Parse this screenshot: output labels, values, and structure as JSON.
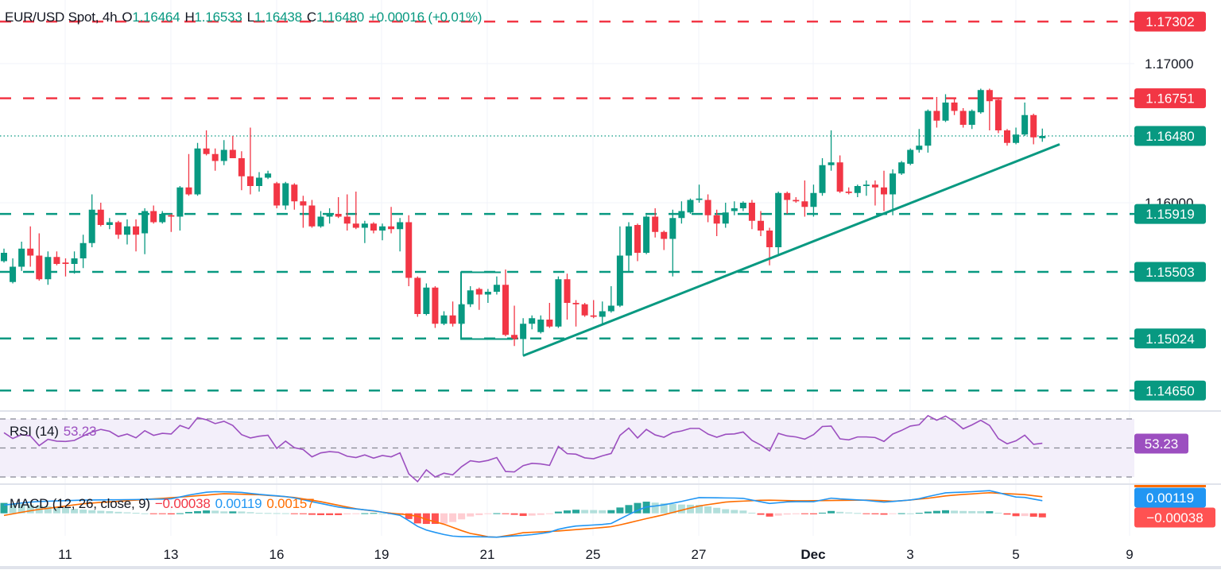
{
  "header": {
    "symbol": "EUR/USD Spot, 4h",
    "o_label": "O",
    "o_value": "1.16464",
    "h_label": "H",
    "h_value": "1.16533",
    "l_label": "L",
    "l_value": "1.16438",
    "c_label": "C",
    "c_value": "1.16480",
    "change": "+0.00016 (+0.01%)"
  },
  "rsi_legend": {
    "label": "RSI (14)",
    "value": "53.23"
  },
  "macd_legend": {
    "label": "MACD (12, 26, close, 9)",
    "hist": "−0.00038",
    "macd": "0.00119",
    "signal": "0.00157"
  },
  "colors": {
    "up": "#089981",
    "down": "#f23645",
    "resistance": "#f23645",
    "support": "#089981",
    "trendline": "#089981",
    "rsi": "#9c4fc0",
    "rsi_band": "#f3effa",
    "macd": "#2196f3",
    "signal": "#ff6d00",
    "hist_up_strong": "#26a69a",
    "hist_up_weak": "#b2dfdb",
    "hist_down_strong": "#ff5252",
    "hist_down_weak": "#ffcdd2"
  },
  "chart_data": {
    "type": "candlestick",
    "timeframe": "4h",
    "x_tick_labels": [
      "11",
      "13",
      "16",
      "19",
      "21",
      "25",
      "27",
      "Dec",
      "3",
      "5",
      "9"
    ],
    "y_tick_labels": [
      "1.17000",
      "1.16000"
    ],
    "y_ticks": [
      1.17,
      1.16
    ],
    "ylim": [
      1.1445,
      1.1745
    ],
    "grid": true,
    "last_price": {
      "value": 1.1648,
      "label": "1.16480"
    },
    "levels": [
      {
        "type": "resistance",
        "value": 1.17302,
        "label": "1.17302"
      },
      {
        "type": "resistance",
        "value": 1.16751,
        "label": "1.16751"
      },
      {
        "type": "support",
        "value": 1.15919,
        "label": "1.15919"
      },
      {
        "type": "support",
        "value": 1.15503,
        "label": "1.15503"
      },
      {
        "type": "support",
        "value": 1.15024,
        "label": "1.15024"
      },
      {
        "type": "support",
        "value": 1.1465,
        "label": "1.14650"
      }
    ],
    "trendline": {
      "start_price": 1.149,
      "end_price": 1.1642
    },
    "range_box": {
      "top": 1.155,
      "bottom": 1.1502
    },
    "ohlc": [
      [
        1.1558,
        1.1567,
        1.1557,
        1.1564
      ],
      [
        1.1543,
        1.156,
        1.1542,
        1.1554
      ],
      [
        1.1554,
        1.1572,
        1.1551,
        1.1567
      ],
      [
        1.1567,
        1.1583,
        1.1554,
        1.1562
      ],
      [
        1.1562,
        1.1578,
        1.1544,
        1.1545
      ],
      [
        1.1545,
        1.1565,
        1.1541,
        1.1561
      ],
      [
        1.1561,
        1.1565,
        1.1555,
        1.1556
      ],
      [
        1.1557,
        1.156,
        1.1547,
        1.1556
      ],
      [
        1.1556,
        1.1565,
        1.1549,
        1.156
      ],
      [
        1.156,
        1.1577,
        1.1553,
        1.1571
      ],
      [
        1.1571,
        1.1606,
        1.1568,
        1.1595
      ],
      [
        1.1595,
        1.16,
        1.1583,
        1.1584
      ],
      [
        1.1584,
        1.1589,
        1.1581,
        1.1586
      ],
      [
        1.1586,
        1.1587,
        1.1574,
        1.1577
      ],
      [
        1.1577,
        1.1588,
        1.157,
        1.1583
      ],
      [
        1.1583,
        1.1588,
        1.1565,
        1.1577
      ],
      [
        1.1578,
        1.1596,
        1.1563,
        1.1594
      ],
      [
        1.1594,
        1.1598,
        1.1585,
        1.1586
      ],
      [
        1.1586,
        1.1594,
        1.1585,
        1.1592
      ],
      [
        1.1591,
        1.1592,
        1.1579,
        1.159
      ],
      [
        1.159,
        1.1612,
        1.158,
        1.1611
      ],
      [
        1.1611,
        1.1635,
        1.1605,
        1.1606
      ],
      [
        1.1606,
        1.1643,
        1.1605,
        1.1639
      ],
      [
        1.1639,
        1.1652,
        1.1634,
        1.1635
      ],
      [
        1.1635,
        1.1639,
        1.1623,
        1.163
      ],
      [
        1.163,
        1.1645,
        1.1627,
        1.1638
      ],
      [
        1.1638,
        1.1648,
        1.1632,
        1.1632
      ],
      [
        1.1632,
        1.1637,
        1.1609,
        1.1619
      ],
      [
        1.1619,
        1.1654,
        1.1606,
        1.1612
      ],
      [
        1.1612,
        1.1622,
        1.1608,
        1.1618
      ],
      [
        1.1618,
        1.1623,
        1.1617,
        1.1621
      ],
      [
        1.1614,
        1.1615,
        1.1596,
        1.1598
      ],
      [
        1.1598,
        1.1615,
        1.1595,
        1.1614
      ],
      [
        1.1613,
        1.1614,
        1.1595,
        1.1601
      ],
      [
        1.1601,
        1.1605,
        1.1582,
        1.1598
      ],
      [
        1.1598,
        1.1602,
        1.1582,
        1.1583
      ],
      [
        1.1583,
        1.1594,
        1.1582,
        1.159
      ],
      [
        1.159,
        1.1596,
        1.1585,
        1.1592
      ],
      [
        1.1592,
        1.1604,
        1.1589,
        1.159
      ],
      [
        1.159,
        1.1606,
        1.158,
        1.1585
      ],
      [
        1.1585,
        1.1608,
        1.1581,
        1.1582
      ],
      [
        1.1582,
        1.1587,
        1.1571,
        1.1585
      ],
      [
        1.1585,
        1.1586,
        1.1578,
        1.158
      ],
      [
        1.158,
        1.1585,
        1.1573,
        1.1583
      ],
      [
        1.1583,
        1.1597,
        1.1578,
        1.1581
      ],
      [
        1.1581,
        1.1589,
        1.1565,
        1.1586
      ],
      [
        1.1586,
        1.1591,
        1.154,
        1.1546
      ],
      [
        1.1546,
        1.1547,
        1.1518,
        1.152
      ],
      [
        1.152,
        1.1542,
        1.1519,
        1.1539
      ],
      [
        1.1539,
        1.154,
        1.151,
        1.1513
      ],
      [
        1.1513,
        1.1522,
        1.1512,
        1.1519
      ],
      [
        1.1519,
        1.1529,
        1.1511,
        1.1513
      ],
      [
        1.1513,
        1.1528,
        1.1512,
        1.1527
      ],
      [
        1.1527,
        1.154,
        1.1525,
        1.1537
      ],
      [
        1.1538,
        1.1539,
        1.1523,
        1.1534
      ],
      [
        1.1534,
        1.1538,
        1.1528,
        1.1536
      ],
      [
        1.1536,
        1.1547,
        1.1534,
        1.1541
      ],
      [
        1.1541,
        1.1552,
        1.1504,
        1.1505
      ],
      [
        1.1505,
        1.1526,
        1.1497,
        1.1502
      ],
      [
        1.1502,
        1.1517,
        1.149,
        1.1513
      ],
      [
        1.1513,
        1.1519,
        1.1509,
        1.1517
      ],
      [
        1.1507,
        1.1519,
        1.1506,
        1.1516
      ],
      [
        1.1516,
        1.1528,
        1.151,
        1.1511
      ],
      [
        1.1511,
        1.1547,
        1.151,
        1.1545
      ],
      [
        1.1545,
        1.1549,
        1.1516,
        1.1528
      ],
      [
        1.1528,
        1.153,
        1.1511,
        1.1527
      ],
      [
        1.1527,
        1.1528,
        1.1518,
        1.1519
      ],
      [
        1.1519,
        1.153,
        1.1517,
        1.1518
      ],
      [
        1.1518,
        1.1529,
        1.1513,
        1.1522
      ],
      [
        1.1522,
        1.154,
        1.1521,
        1.1526
      ],
      [
        1.1526,
        1.1583,
        1.1525,
        1.1562
      ],
      [
        1.1562,
        1.1586,
        1.155,
        1.1583
      ],
      [
        1.1584,
        1.1585,
        1.1558,
        1.1564
      ],
      [
        1.1564,
        1.1591,
        1.1563,
        1.159
      ],
      [
        1.159,
        1.1596,
        1.1575,
        1.1579
      ],
      [
        1.1579,
        1.158,
        1.1566,
        1.1574
      ],
      [
        1.1574,
        1.1595,
        1.1547,
        1.1589
      ],
      [
        1.1589,
        1.1601,
        1.1585,
        1.1594
      ],
      [
        1.1593,
        1.1603,
        1.1592,
        1.1602
      ],
      [
        1.1602,
        1.1613,
        1.16,
        1.1603
      ],
      [
        1.1602,
        1.1606,
        1.1586,
        1.1591
      ],
      [
        1.1591,
        1.1595,
        1.1576,
        1.1585
      ],
      [
        1.1585,
        1.16,
        1.1582,
        1.1593
      ],
      [
        1.1594,
        1.1601,
        1.1591,
        1.1596
      ],
      [
        1.1596,
        1.1601,
        1.1594,
        1.16
      ],
      [
        1.16,
        1.1602,
        1.1581,
        1.1587
      ],
      [
        1.1587,
        1.1594,
        1.1576,
        1.158
      ],
      [
        1.158,
        1.1582,
        1.1555,
        1.1568
      ],
      [
        1.1568,
        1.1608,
        1.1563,
        1.1607
      ],
      [
        1.1607,
        1.1608,
        1.1592,
        1.1602
      ],
      [
        1.1602,
        1.1604,
        1.16,
        1.1601
      ],
      [
        1.1601,
        1.1616,
        1.159,
        1.1597
      ],
      [
        1.1597,
        1.1613,
        1.159,
        1.1607
      ],
      [
        1.1607,
        1.1632,
        1.1605,
        1.1627
      ],
      [
        1.1627,
        1.1652,
        1.1623,
        1.1629
      ],
      [
        1.1629,
        1.1634,
        1.1607,
        1.1608
      ],
      [
        1.1608,
        1.1611,
        1.1606,
        1.1607
      ],
      [
        1.1607,
        1.1613,
        1.1604,
        1.1612
      ],
      [
        1.1612,
        1.1616,
        1.1605,
        1.1613
      ],
      [
        1.1613,
        1.1616,
        1.1598,
        1.1611
      ],
      [
        1.1611,
        1.1623,
        1.1594,
        1.1606
      ],
      [
        1.1606,
        1.1624,
        1.1591,
        1.1621
      ],
      [
        1.1621,
        1.163,
        1.162,
        1.1629
      ],
      [
        1.1628,
        1.1639,
        1.1627,
        1.1638
      ],
      [
        1.1638,
        1.1653,
        1.1636,
        1.1641
      ],
      [
        1.1641,
        1.1667,
        1.1636,
        1.1666
      ],
      [
        1.1666,
        1.1676,
        1.1654,
        1.1659
      ],
      [
        1.1659,
        1.1678,
        1.1658,
        1.1672
      ],
      [
        1.1672,
        1.1675,
        1.1663,
        1.1666
      ],
      [
        1.1666,
        1.1668,
        1.1654,
        1.1656
      ],
      [
        1.1656,
        1.1667,
        1.1653,
        1.1666
      ],
      [
        1.1665,
        1.1682,
        1.1664,
        1.1681
      ],
      [
        1.1681,
        1.1682,
        1.1652,
        1.1673
      ],
      [
        1.1674,
        1.1675,
        1.165,
        1.1652
      ],
      [
        1.1652,
        1.1653,
        1.1641,
        1.1643
      ],
      [
        1.1643,
        1.1654,
        1.1642,
        1.1649
      ],
      [
        1.1649,
        1.1672,
        1.1648,
        1.1663
      ],
      [
        1.1663,
        1.1664,
        1.1642,
        1.1647
      ],
      [
        1.16464,
        1.16533,
        1.16438,
        1.1648
      ]
    ],
    "rsi": {
      "period": 14,
      "levels": [
        70,
        50,
        30
      ],
      "last_label": "53.23",
      "values": [
        60.5,
        56.5,
        59.2,
        58.3,
        51.6,
        56.0,
        54.7,
        54.5,
        55.2,
        58.3,
        61.0,
        62.8,
        61.5,
        57.9,
        59.6,
        57.0,
        61.9,
        58.7,
        60.1,
        59.6,
        65.5,
        63.3,
        70.9,
        69.5,
        66.8,
        68.4,
        65.5,
        59.2,
        56.9,
        58.1,
        58.8,
        49.7,
        54.7,
        50.2,
        48.9,
        43.9,
        46.6,
        47.5,
        47.0,
        44.3,
        43.4,
        45.2,
        43.0,
        44.8,
        43.9,
        46.6,
        32.2,
        26.8,
        34.9,
        30.0,
        32.6,
        31.5,
        37.1,
        41.2,
        40.3,
        41.4,
        43.4,
        33.8,
        33.5,
        37.8,
        39.4,
        39.0,
        38.0,
        51.1,
        46.1,
        45.7,
        43.2,
        42.6,
        44.6,
        46.2,
        58.7,
        63.7,
        56.9,
        62.8,
        59.0,
        57.4,
        60.6,
        61.7,
        63.5,
        63.5,
        59.6,
        57.4,
        59.4,
        59.7,
        61.0,
        55.2,
        52.0,
        48.0,
        60.1,
        58.3,
        57.6,
        56.1,
        59.2,
        64.8,
        65.1,
        56.3,
        55.6,
        57.6,
        57.6,
        57.2,
        54.5,
        59.6,
        62.1,
        65.1,
        66.0,
        72.3,
        69.1,
        72.0,
        68.2,
        63.2,
        65.9,
        69.1,
        65.5,
        56.5,
        52.9,
        54.9,
        58.8,
        52.5,
        53.23
      ]
    },
    "macd": {
      "params": "12, 26, close, 9",
      "macd_label": "0.00119",
      "hist_label": "−0.00038",
      "signal_label": "0.00157",
      "macd_values": [
        0.00078,
        0.00087,
        0.00097,
        0.00106,
        0.00112,
        0.00114,
        0.00117,
        0.00119,
        0.00122,
        0.00125,
        0.00126,
        0.00127,
        0.00128,
        0.00128,
        0.00129,
        0.0013,
        0.00131,
        0.00133,
        0.00134,
        0.00137,
        0.00154,
        0.00172,
        0.00186,
        0.00199,
        0.00204,
        0.00203,
        0.00201,
        0.00197,
        0.00188,
        0.00179,
        0.00172,
        0.00165,
        0.00158,
        0.00145,
        0.00128,
        0.0011,
        0.00093,
        0.00076,
        0.00059,
        0.00049,
        0.00041,
        0.00033,
        0.00025,
        0.00011,
        -4e-05,
        -0.00019,
        -0.00069,
        -0.00123,
        -0.00158,
        -0.0018,
        -0.002,
        -0.00215,
        -0.0022,
        -0.0022,
        -0.00221,
        -0.00223,
        -0.00225,
        -0.00219,
        -0.00213,
        -0.00208,
        -0.00201,
        -0.0019,
        -0.00178,
        -0.00151,
        -0.00133,
        -0.0012,
        -0.00115,
        -0.0011,
        -0.00105,
        -0.00096,
        -0.00054,
        -0.00012,
        0.00028,
        0.0006,
        0.00069,
        0.00081,
        0.00096,
        0.00112,
        0.00131,
        0.00148,
        0.00147,
        0.00146,
        0.00145,
        0.00144,
        0.00141,
        0.00125,
        0.00109,
        0.00093,
        0.001,
        0.00108,
        0.0011,
        0.0011,
        0.0011,
        0.00126,
        0.00143,
        0.00136,
        0.00131,
        0.00127,
        0.00122,
        0.00113,
        0.00106,
        0.00112,
        0.00119,
        0.00126,
        0.00138,
        0.00158,
        0.00176,
        0.00193,
        0.00197,
        0.002,
        0.00204,
        0.00209,
        0.00214,
        0.00195,
        0.00173,
        0.00154,
        0.0015,
        0.00134,
        0.00119
      ],
      "signal_values": [
        -0.0002,
        -5e-05,
        0.0001,
        0.00024,
        0.00037,
        0.00047,
        0.00058,
        0.00069,
        0.0008,
        0.0009,
        0.00097,
        0.00103,
        0.00108,
        0.00114,
        0.0012,
        0.00125,
        0.00131,
        0.00136,
        0.00141,
        0.00147,
        0.00153,
        0.00159,
        0.00166,
        0.00172,
        0.00179,
        0.00185,
        0.00183,
        0.0018,
        0.00177,
        0.00175,
        0.00169,
        0.00163,
        0.00157,
        0.00149,
        0.00136,
        0.00124,
        0.0011,
        0.00093,
        0.00076,
        0.00059,
        0.00043,
        0.00032,
        0.00022,
        0.00011,
        1e-05,
        -7e-05,
        -0.00015,
        -0.00028,
        -0.00058,
        -0.0008,
        -0.00103,
        -0.00133,
        -0.00163,
        -0.0019,
        -0.00204,
        -0.00221,
        -0.00226,
        -0.00213,
        -0.00199,
        -0.00183,
        -0.00179,
        -0.00175,
        -0.00171,
        -0.00167,
        -0.0016,
        -0.00154,
        -0.00147,
        -0.00141,
        -0.00134,
        -0.00126,
        -0.00109,
        -0.0009,
        -0.0007,
        -0.0005,
        -0.00032,
        -0.00013,
        8e-05,
        0.00029,
        0.0005,
        0.00069,
        0.00082,
        0.00094,
        0.00106,
        0.00112,
        0.00115,
        0.00119,
        0.00123,
        0.00124,
        0.00122,
        0.0012,
        0.00118,
        0.00118,
        0.00119,
        0.0012,
        0.00121,
        0.00122,
        0.00123,
        0.00124,
        0.00125,
        0.00122,
        0.00119,
        0.00115,
        0.00118,
        0.00126,
        0.00134,
        0.00142,
        0.00153,
        0.00164,
        0.00172,
        0.00178,
        0.00183,
        0.00189,
        0.00194,
        0.00189,
        0.00185,
        0.00181,
        0.00176,
        0.00166,
        0.00157
      ]
    }
  }
}
